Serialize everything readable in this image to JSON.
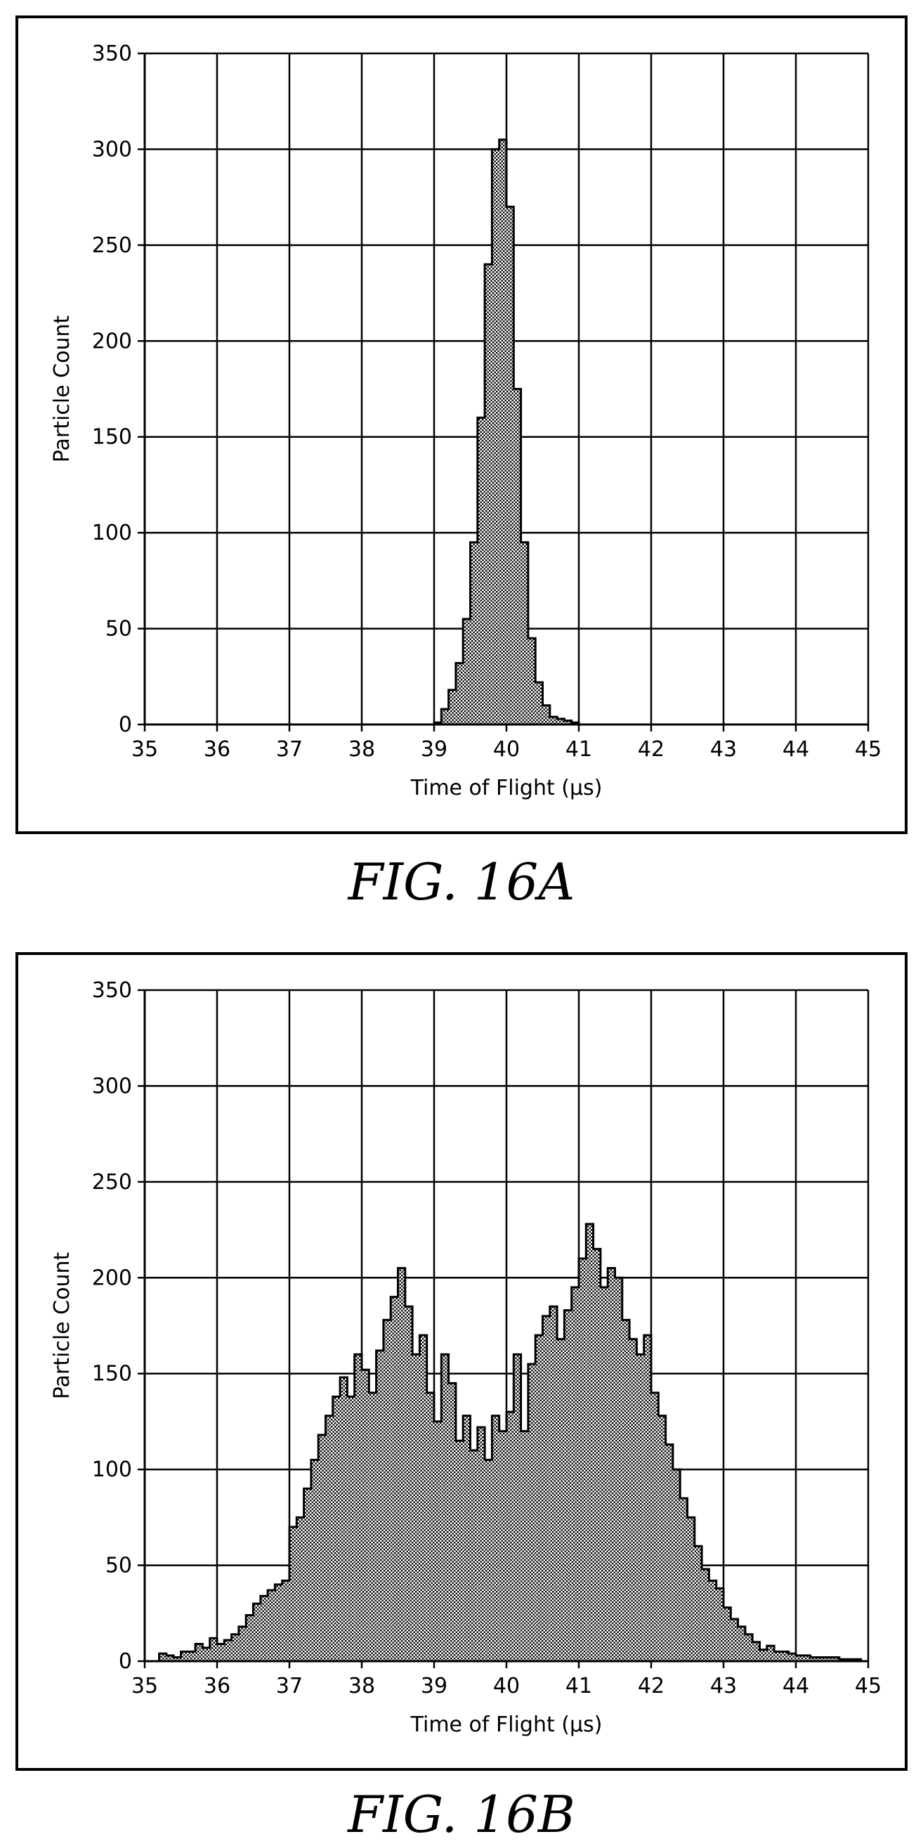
{
  "figures": [
    {
      "caption": "FIG. 16A",
      "chart_data": {
        "type": "bar",
        "xlabel": "Time of Flight (µs)",
        "ylabel": "Particle Count",
        "xlim": [
          35,
          45
        ],
        "ylim": [
          0,
          350
        ],
        "xticks": [
          35,
          36,
          37,
          38,
          39,
          40,
          41,
          42,
          43,
          44,
          45
        ],
        "yticks": [
          0,
          50,
          100,
          150,
          200,
          250,
          300,
          350
        ],
        "grid": true,
        "bin_width": 0.1,
        "bin_start": [
          39.0,
          39.1,
          39.2,
          39.3,
          39.4,
          39.5,
          39.6,
          39.7,
          39.8,
          39.9,
          40.0,
          40.1,
          40.2,
          40.3,
          40.4,
          40.5,
          40.6,
          40.7,
          40.8,
          40.9
        ],
        "values": [
          1,
          8,
          18,
          32,
          55,
          95,
          160,
          240,
          300,
          305,
          270,
          175,
          95,
          45,
          22,
          10,
          4,
          3,
          2,
          1
        ]
      }
    },
    {
      "caption": "FIG. 16B",
      "chart_data": {
        "type": "bar",
        "xlabel": "Time of Flight (µs)",
        "ylabel": "Particle Count",
        "xlim": [
          35,
          45
        ],
        "ylim": [
          0,
          350
        ],
        "xticks": [
          35,
          36,
          37,
          38,
          39,
          40,
          41,
          42,
          43,
          44,
          45
        ],
        "yticks": [
          0,
          50,
          100,
          150,
          200,
          250,
          300,
          350
        ],
        "grid": true,
        "bin_width": 0.1,
        "bin_start": [
          35.2,
          35.3,
          35.4,
          35.5,
          35.6,
          35.7,
          35.8,
          35.9,
          36.0,
          36.1,
          36.2,
          36.3,
          36.4,
          36.5,
          36.6,
          36.7,
          36.8,
          36.9,
          37.0,
          37.1,
          37.2,
          37.3,
          37.4,
          37.5,
          37.6,
          37.7,
          37.8,
          37.9,
          38.0,
          38.1,
          38.2,
          38.3,
          38.4,
          38.5,
          38.6,
          38.7,
          38.8,
          38.9,
          39.0,
          39.1,
          39.2,
          39.3,
          39.4,
          39.5,
          39.6,
          39.7,
          39.8,
          39.9,
          40.0,
          40.1,
          40.2,
          40.3,
          40.4,
          40.5,
          40.6,
          40.7,
          40.8,
          40.9,
          41.0,
          41.1,
          41.2,
          41.3,
          41.4,
          41.5,
          41.6,
          41.7,
          41.8,
          41.9,
          42.0,
          42.1,
          42.2,
          42.3,
          42.4,
          42.5,
          42.6,
          42.7,
          42.8,
          42.9,
          43.0,
          43.1,
          43.2,
          43.3,
          43.4,
          43.5,
          43.6,
          43.7,
          43.8,
          43.9,
          44.0,
          44.1,
          44.2,
          44.3,
          44.4,
          44.5,
          44.6,
          44.7,
          44.8
        ],
        "values": [
          4,
          3,
          2,
          5,
          5,
          9,
          7,
          12,
          9,
          11,
          14,
          18,
          24,
          30,
          34,
          37,
          40,
          42,
          70,
          75,
          90,
          105,
          118,
          128,
          138,
          148,
          138,
          160,
          152,
          140,
          162,
          178,
          190,
          205,
          185,
          160,
          170,
          140,
          125,
          160,
          145,
          115,
          128,
          110,
          122,
          105,
          128,
          120,
          130,
          160,
          120,
          155,
          170,
          180,
          185,
          168,
          183,
          195,
          210,
          228,
          215,
          195,
          205,
          200,
          178,
          168,
          160,
          170,
          140,
          128,
          113,
          100,
          85,
          75,
          60,
          48,
          42,
          38,
          28,
          22,
          18,
          14,
          10,
          6,
          8,
          5,
          5,
          4,
          3,
          3,
          2,
          2,
          2,
          2,
          1,
          1,
          1
        ]
      }
    }
  ]
}
